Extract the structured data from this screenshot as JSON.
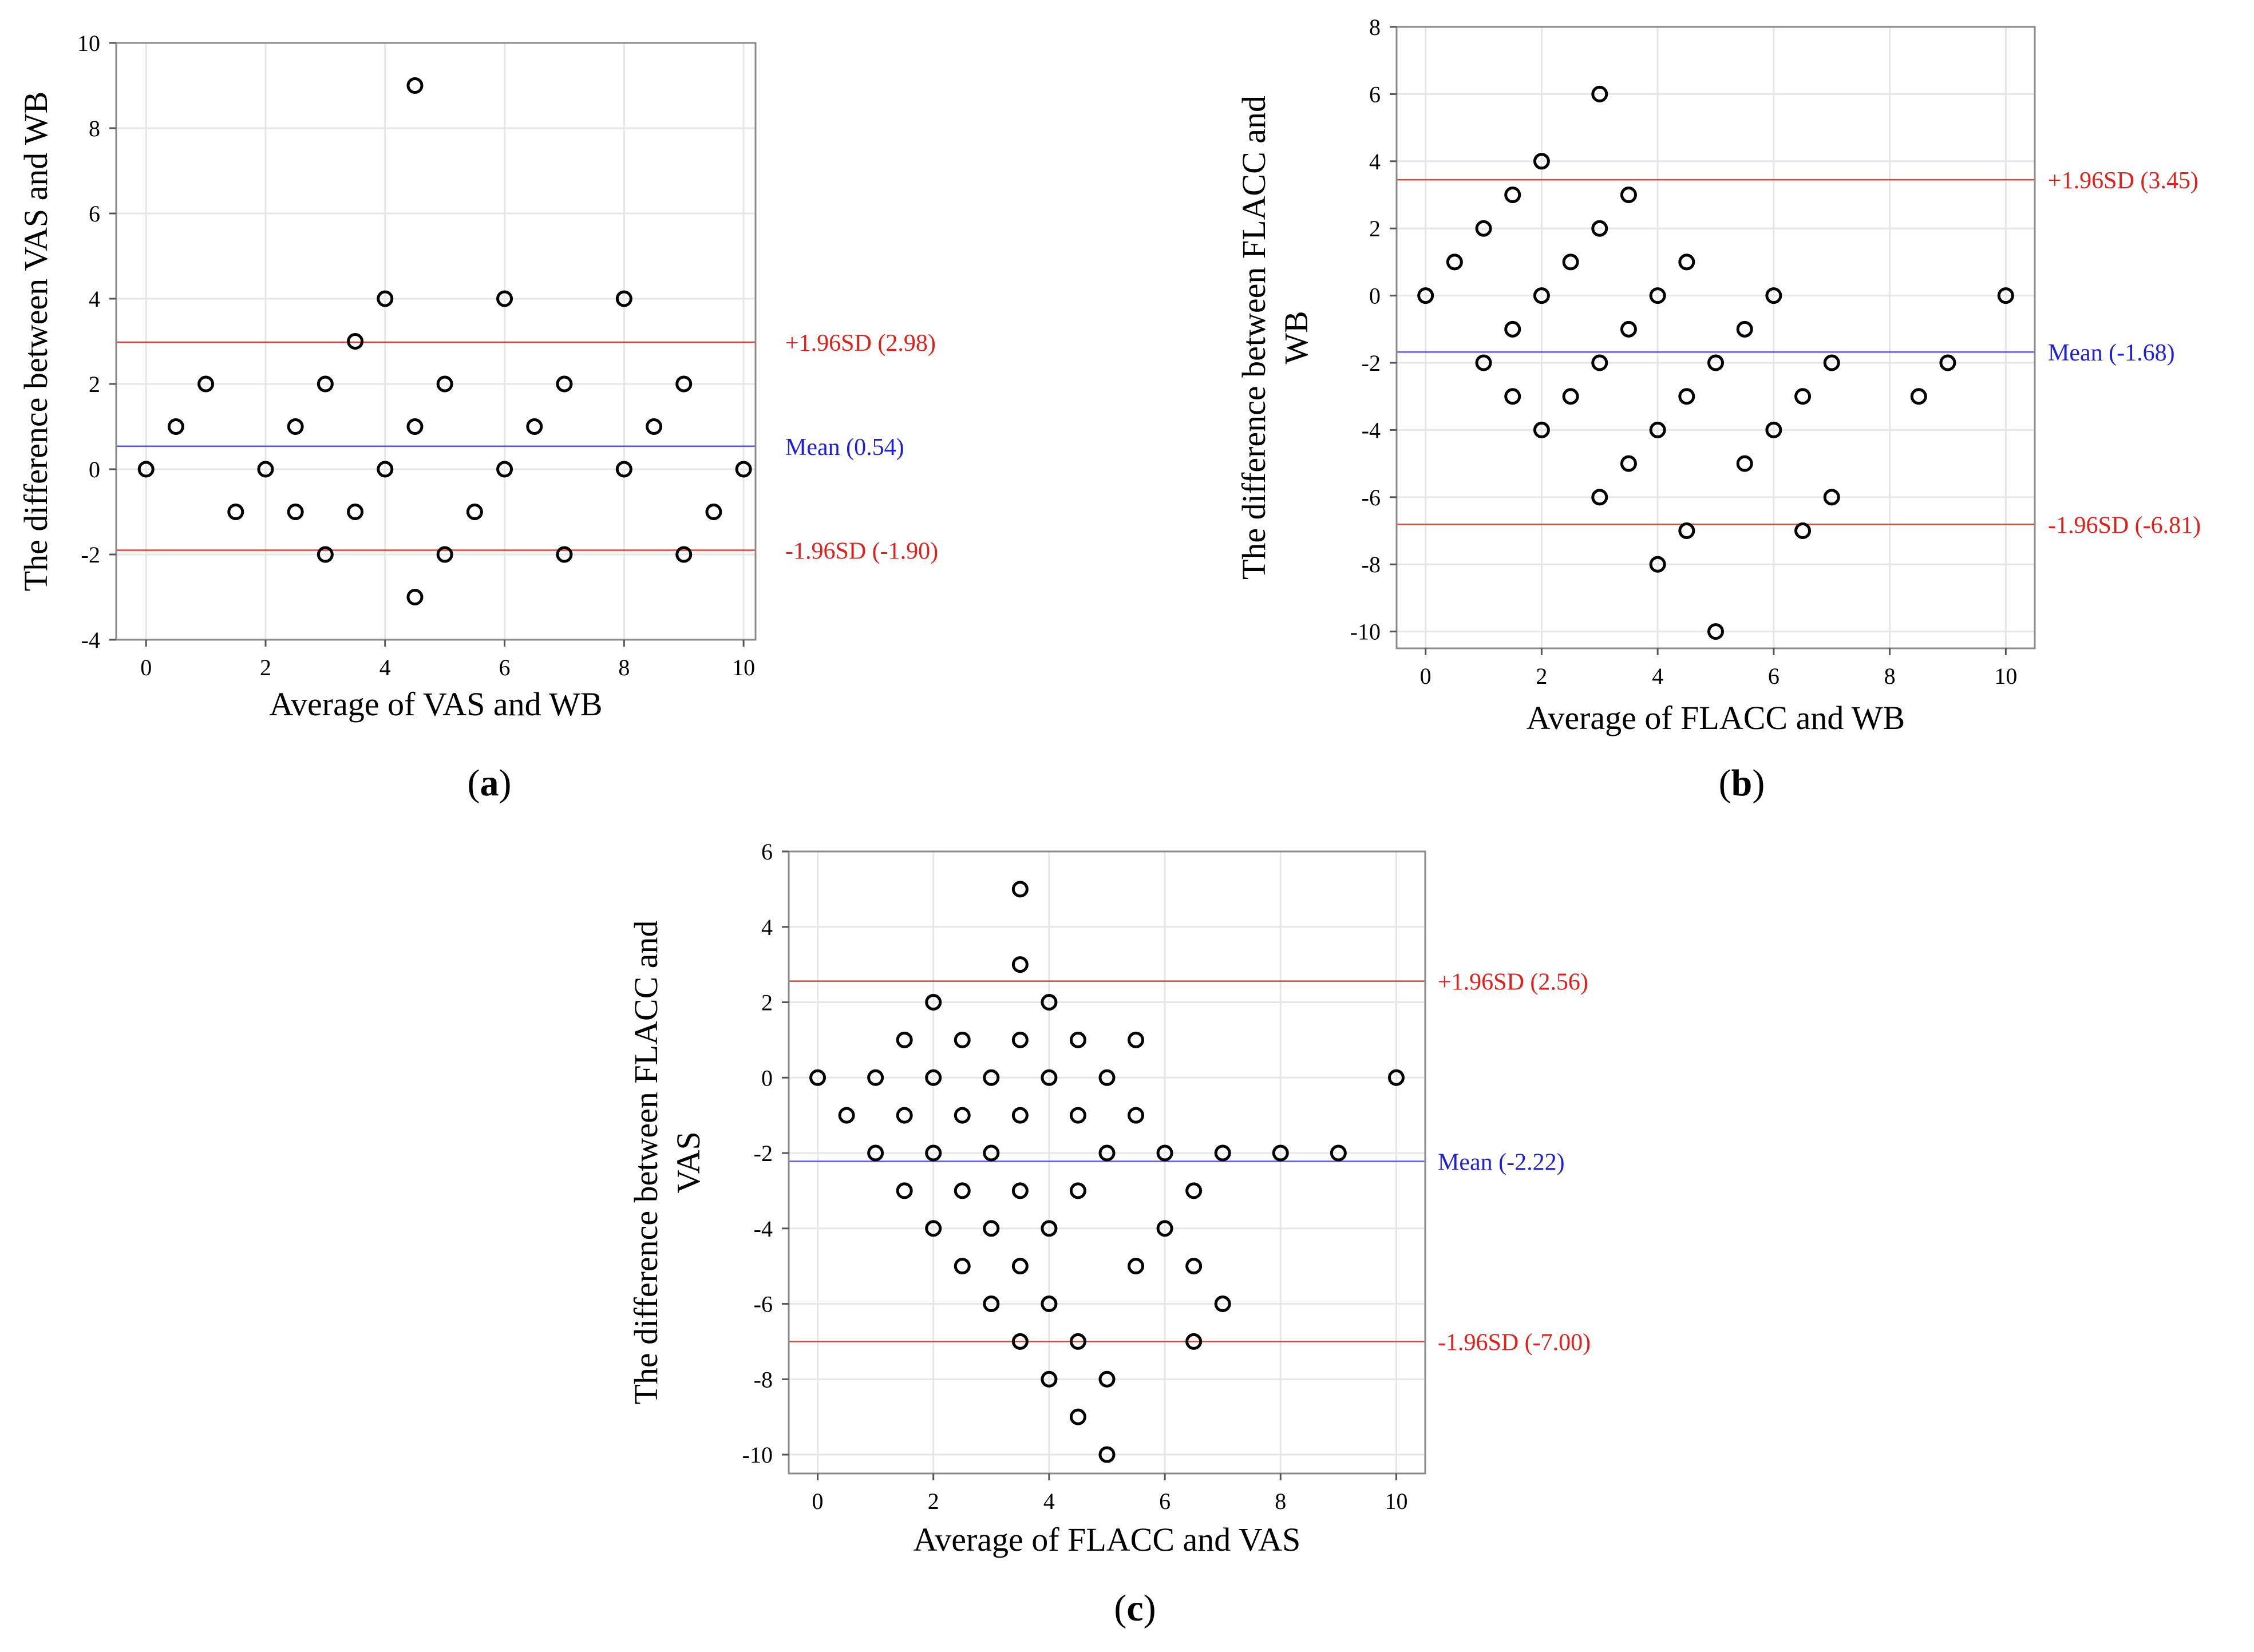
{
  "chart_data": [
    {
      "id": "a",
      "type": "scatter",
      "panel_label": "a",
      "xlabel": "Average of VAS and WB",
      "ylabel": [
        "The difference between VAS and WB"
      ],
      "xlim": [
        -0.5,
        10.2
      ],
      "ylim": [
        -4,
        10
      ],
      "xticks": [
        0,
        2,
        4,
        6,
        8,
        10
      ],
      "yticks": [
        -4,
        -2,
        0,
        2,
        4,
        6,
        8,
        10
      ],
      "grid": true,
      "points": [
        [
          0,
          0
        ],
        [
          0.5,
          1
        ],
        [
          1,
          2
        ],
        [
          1.5,
          -1
        ],
        [
          2,
          0
        ],
        [
          2.5,
          1
        ],
        [
          2.5,
          -1
        ],
        [
          3,
          2
        ],
        [
          3,
          -2
        ],
        [
          3.5,
          3
        ],
        [
          3.5,
          -1
        ],
        [
          4,
          4
        ],
        [
          4,
          0
        ],
        [
          4.5,
          9
        ],
        [
          4.5,
          1
        ],
        [
          4.5,
          -3
        ],
        [
          5,
          2
        ],
        [
          5,
          -2
        ],
        [
          5.5,
          -1
        ],
        [
          6,
          4
        ],
        [
          6,
          0
        ],
        [
          6.5,
          1
        ],
        [
          7,
          2
        ],
        [
          7,
          -2
        ],
        [
          8,
          4
        ],
        [
          8,
          0
        ],
        [
          8.5,
          1
        ],
        [
          9,
          2
        ],
        [
          9,
          -2
        ],
        [
          9.5,
          -1
        ],
        [
          10,
          0
        ]
      ],
      "lines": [
        {
          "name": "upper",
          "label": "+1.96SD (2.98)",
          "value": 2.98,
          "color": "#e0201b",
          "label_color": "#e0201b"
        },
        {
          "name": "mean",
          "label": "Mean (0.54)",
          "value": 0.54,
          "color": "#3d3de0",
          "label_color": "#1f1fd6"
        },
        {
          "name": "lower",
          "label": "-1.96SD (-1.90)",
          "value": -1.9,
          "color": "#e0201b",
          "label_color": "#e0201b"
        }
      ]
    },
    {
      "id": "b",
      "type": "scatter",
      "panel_label": "b",
      "xlabel": "Average of FLACC and WB",
      "ylabel": [
        "The difference between FLACC and",
        "WB"
      ],
      "xlim": [
        -0.5,
        10.5
      ],
      "ylim": [
        -10.5,
        8
      ],
      "xticks": [
        0,
        2,
        4,
        6,
        8,
        10
      ],
      "yticks": [
        -10,
        -8,
        -6,
        -4,
        -2,
        0,
        2,
        4,
        6,
        8
      ],
      "grid": true,
      "points": [
        [
          0,
          0
        ],
        [
          0.5,
          1
        ],
        [
          1,
          2
        ],
        [
          1,
          -2
        ],
        [
          1.5,
          3
        ],
        [
          1.5,
          -1
        ],
        [
          1.5,
          -3
        ],
        [
          2,
          4
        ],
        [
          2,
          0
        ],
        [
          2,
          -4
        ],
        [
          2.5,
          1
        ],
        [
          2.5,
          -3
        ],
        [
          3,
          6
        ],
        [
          3,
          2
        ],
        [
          3,
          -2
        ],
        [
          3,
          -6
        ],
        [
          3.5,
          3
        ],
        [
          3.5,
          -1
        ],
        [
          3.5,
          -5
        ],
        [
          4,
          0
        ],
        [
          4,
          -4
        ],
        [
          4,
          -8
        ],
        [
          4.5,
          1
        ],
        [
          4.5,
          -3
        ],
        [
          4.5,
          -7
        ],
        [
          5,
          -2
        ],
        [
          5,
          -10
        ],
        [
          5.5,
          -1
        ],
        [
          5.5,
          -5
        ],
        [
          6,
          0
        ],
        [
          6,
          -4
        ],
        [
          6.5,
          -3
        ],
        [
          6.5,
          -7
        ],
        [
          7,
          -2
        ],
        [
          7,
          -6
        ],
        [
          8.5,
          -3
        ],
        [
          9,
          -2
        ],
        [
          10,
          0
        ]
      ],
      "lines": [
        {
          "name": "upper",
          "label": "+1.96SD (3.45)",
          "value": 3.45,
          "color": "#e0201b",
          "label_color": "#e0201b"
        },
        {
          "name": "mean",
          "label": "Mean (-1.68)",
          "value": -1.68,
          "color": "#3d3de0",
          "label_color": "#1f1fd6"
        },
        {
          "name": "lower",
          "label": "-1.96SD (-6.81)",
          "value": -6.81,
          "color": "#e0201b",
          "label_color": "#e0201b"
        }
      ]
    },
    {
      "id": "c",
      "type": "scatter",
      "panel_label": "c",
      "xlabel": "Average of FLACC and VAS",
      "ylabel": [
        "The difference between FLACC and",
        "VAS"
      ],
      "xlim": [
        -0.5,
        10.5
      ],
      "ylim": [
        -10.5,
        6
      ],
      "xticks": [
        0,
        2,
        4,
        6,
        8,
        10
      ],
      "yticks": [
        -10,
        -8,
        -6,
        -4,
        -2,
        0,
        2,
        4,
        6
      ],
      "grid": true,
      "points": [
        [
          0,
          0
        ],
        [
          0.5,
          -1
        ],
        [
          1,
          0
        ],
        [
          1,
          -2
        ],
        [
          1.5,
          1
        ],
        [
          1.5,
          -1
        ],
        [
          1.5,
          -3
        ],
        [
          2,
          2
        ],
        [
          2,
          0
        ],
        [
          2,
          -2
        ],
        [
          2,
          -4
        ],
        [
          2.5,
          1
        ],
        [
          2.5,
          -1
        ],
        [
          2.5,
          -3
        ],
        [
          2.5,
          -5
        ],
        [
          3,
          0
        ],
        [
          3,
          -2
        ],
        [
          3,
          -4
        ],
        [
          3,
          -6
        ],
        [
          3.5,
          5
        ],
        [
          3.5,
          3
        ],
        [
          3.5,
          1
        ],
        [
          3.5,
          -1
        ],
        [
          3.5,
          -3
        ],
        [
          3.5,
          -5
        ],
        [
          3.5,
          -7
        ],
        [
          4,
          2
        ],
        [
          4,
          0
        ],
        [
          4,
          -4
        ],
        [
          4,
          -6
        ],
        [
          4,
          -8
        ],
        [
          4.5,
          1
        ],
        [
          4.5,
          -1
        ],
        [
          4.5,
          -3
        ],
        [
          4.5,
          -7
        ],
        [
          4.5,
          -9
        ],
        [
          5,
          0
        ],
        [
          5,
          -2
        ],
        [
          5,
          -8
        ],
        [
          5,
          -10
        ],
        [
          5.5,
          1
        ],
        [
          5.5,
          -1
        ],
        [
          5.5,
          -5
        ],
        [
          6,
          -2
        ],
        [
          6,
          -4
        ],
        [
          6.5,
          -3
        ],
        [
          6.5,
          -5
        ],
        [
          6.5,
          -7
        ],
        [
          7,
          -2
        ],
        [
          7,
          -6
        ],
        [
          8,
          -2
        ],
        [
          9,
          -2
        ],
        [
          10,
          0
        ]
      ],
      "lines": [
        {
          "name": "upper",
          "label": "+1.96SD (2.56)",
          "value": 2.56,
          "color": "#e0201b",
          "label_color": "#e0201b"
        },
        {
          "name": "mean",
          "label": "Mean (-2.22)",
          "value": -2.22,
          "color": "#3d3de0",
          "label_color": "#1f1fd6"
        },
        {
          "name": "lower",
          "label": "-1.96SD (-7.00)",
          "value": -7.0,
          "color": "#e0201b",
          "label_color": "#e0201b"
        }
      ]
    }
  ]
}
